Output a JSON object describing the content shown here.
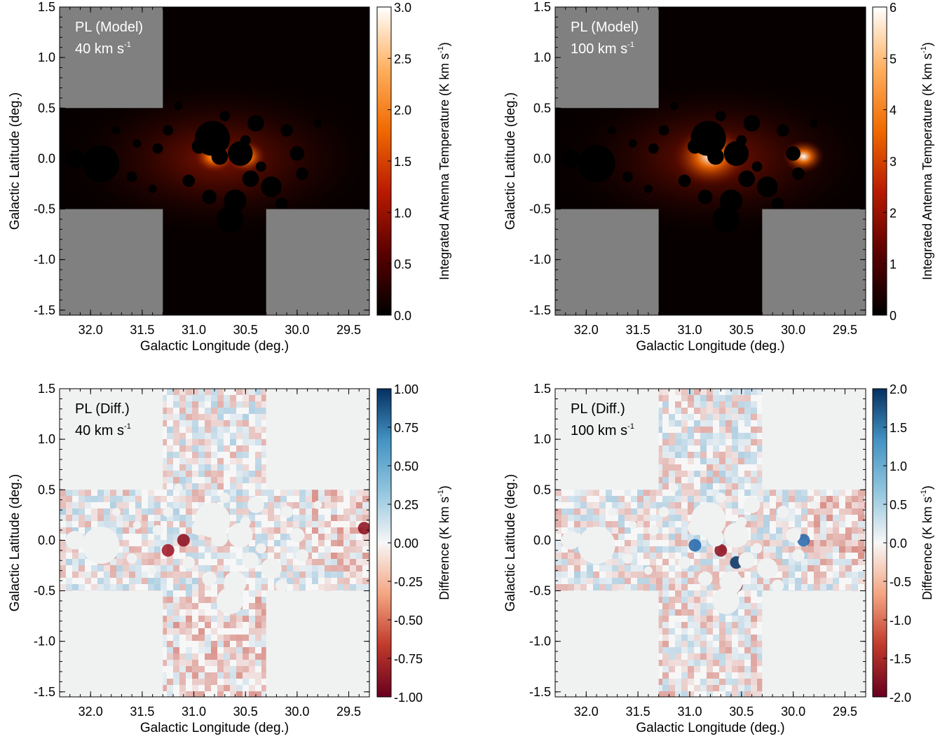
{
  "chart_data": [
    {
      "type": "heatmap",
      "panel_label": "PL (Model)",
      "velocity_label": "40 km s",
      "velocity_sup": "-1",
      "xlabel": "Galactic Longitude (deg.)",
      "ylabel": "Galactic Latitude (deg.)",
      "xlim": [
        32.3,
        29.3
      ],
      "ylim": [
        -1.55,
        1.5
      ],
      "x_ticks": [
        "32.0",
        "31.5",
        "31.0",
        "30.5",
        "30.0",
        "29.5"
      ],
      "y_ticks": [
        "1.5",
        "1.0",
        "0.5",
        "0.0",
        "-0.5",
        "-1.0",
        "-1.5"
      ],
      "colorbar": {
        "label": "Integrated Antenna Temperature (K km s",
        "label_sup": "-1",
        "label_close": ")",
        "ticks": [
          "0.0",
          "0.5",
          "1.0",
          "1.5",
          "2.0",
          "2.5",
          "3.0"
        ],
        "range": [
          0,
          3.0
        ],
        "colormap": "black-red-orange-white",
        "colors": [
          "#000000",
          "#5a0000",
          "#b81a00",
          "#f06a00",
          "#ffb060",
          "#ffffff"
        ]
      },
      "masked_color": "#808080",
      "peak_longitudes": [
        30.8,
        30.5
      ]
    },
    {
      "type": "heatmap",
      "panel_label": "PL (Model)",
      "velocity_label": "100 km s",
      "velocity_sup": "-1",
      "xlabel": "Galactic Longitude (deg.)",
      "ylabel": "Galactic Latitude (deg.)",
      "xlim": [
        32.3,
        29.3
      ],
      "ylim": [
        -1.55,
        1.5
      ],
      "x_ticks": [
        "32.0",
        "31.5",
        "31.0",
        "30.5",
        "30.0",
        "29.5"
      ],
      "y_ticks": [
        "1.5",
        "1.0",
        "0.5",
        "0.0",
        "-0.5",
        "-1.0",
        "-1.5"
      ],
      "colorbar": {
        "label": "Integrated Antenna Temperature (K km s",
        "label_sup": "-1",
        "label_close": ")",
        "ticks": [
          "0",
          "1",
          "2",
          "3",
          "4",
          "5",
          "6"
        ],
        "range": [
          0,
          6
        ],
        "colormap": "black-red-orange-white",
        "colors": [
          "#000000",
          "#5a0000",
          "#b81a00",
          "#f06a00",
          "#ffb060",
          "#ffffff"
        ]
      },
      "masked_color": "#808080",
      "peak_longitudes": [
        30.8,
        29.9
      ]
    },
    {
      "type": "heatmap",
      "panel_label": "PL (Diff.)",
      "velocity_label": "40 km s",
      "velocity_sup": "-1",
      "xlabel": "Galactic Longitude (deg.)",
      "ylabel": "Galactic Latitude (deg.)",
      "xlim": [
        32.3,
        29.3
      ],
      "ylim": [
        -1.55,
        1.5
      ],
      "x_ticks": [
        "32.0",
        "31.5",
        "31.0",
        "30.5",
        "30.0",
        "29.5"
      ],
      "y_ticks": [
        "1.5",
        "1.0",
        "0.5",
        "0.0",
        "-0.5",
        "-1.0",
        "-1.5"
      ],
      "colorbar": {
        "label": "Difference (K km s",
        "label_sup": "-1",
        "label_close": ")",
        "ticks": [
          "-1.00",
          "-0.75",
          "-0.50",
          "-0.25",
          "0.00",
          "0.25",
          "0.50",
          "0.75",
          "1.00"
        ],
        "range": [
          -1.0,
          1.0
        ],
        "colormap": "diverging red-white-blue",
        "colors": [
          "#67001f",
          "#c0392b",
          "#f4a582",
          "#f7f7f7",
          "#92c5de",
          "#4393c3",
          "#053061"
        ]
      },
      "masked_color": "#f0f2f2"
    },
    {
      "type": "heatmap",
      "panel_label": "PL (Diff.)",
      "velocity_label": "100 km s",
      "velocity_sup": "-1",
      "xlabel": "Galactic Longitude (deg.)",
      "ylabel": "Galactic Latitude (deg.)",
      "xlim": [
        32.3,
        29.3
      ],
      "ylim": [
        -1.55,
        1.5
      ],
      "x_ticks": [
        "32.0",
        "31.5",
        "31.0",
        "30.5",
        "30.0",
        "29.5"
      ],
      "y_ticks": [
        "1.5",
        "1.0",
        "0.5",
        "0.0",
        "-0.5",
        "-1.0",
        "-1.5"
      ],
      "colorbar": {
        "label": "Difference (K km s",
        "label_sup": "-1",
        "label_close": ")",
        "ticks": [
          "-2.0",
          "-1.5",
          "-1.0",
          "-0.5",
          "0.0",
          "0.5",
          "1.0",
          "1.5",
          "2.0"
        ],
        "range": [
          -2.0,
          2.0
        ],
        "colormap": "diverging red-white-blue",
        "colors": [
          "#67001f",
          "#c0392b",
          "#f4a582",
          "#f7f7f7",
          "#92c5de",
          "#4393c3",
          "#053061"
        ]
      },
      "masked_color": "#f0f2f2"
    }
  ]
}
